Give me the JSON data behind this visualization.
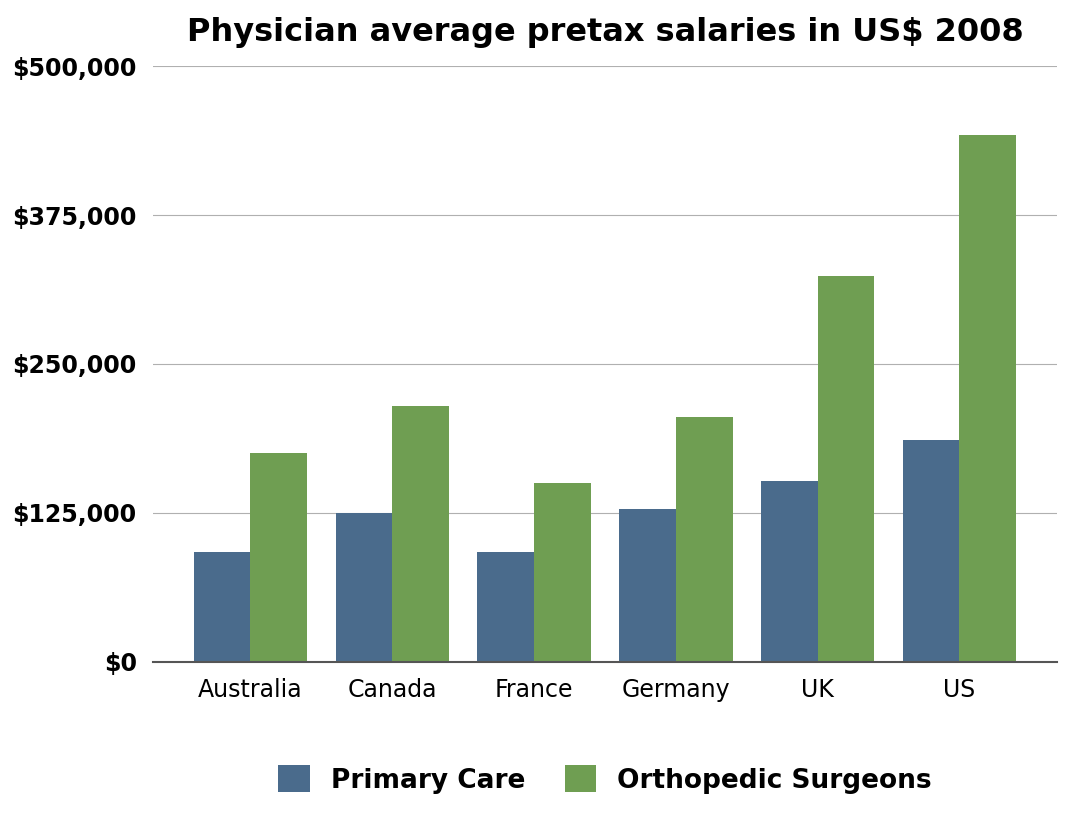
{
  "title": "Physician average pretax salaries in US$ 2008",
  "categories": [
    "Australia",
    "Canada",
    "France",
    "Germany",
    "UK",
    "US"
  ],
  "primary_care": [
    92000,
    125000,
    92000,
    128000,
    152000,
    186000
  ],
  "orthopedic_surgeons": [
    175000,
    215000,
    150000,
    205000,
    324000,
    442000
  ],
  "primary_care_color": "#4a6b8c",
  "orthopedic_color": "#6f9e52",
  "background_color": "#ffffff",
  "ylim": [
    0,
    500000
  ],
  "yticks": [
    0,
    125000,
    250000,
    375000,
    500000
  ],
  "ytick_fontsize": 17,
  "xtick_fontsize": 17,
  "title_fontsize": 23,
  "legend_fontsize": 19,
  "bar_width": 0.4,
  "primary_care_label": "Primary Care",
  "orthopedic_label": "Orthopedic Surgeons"
}
